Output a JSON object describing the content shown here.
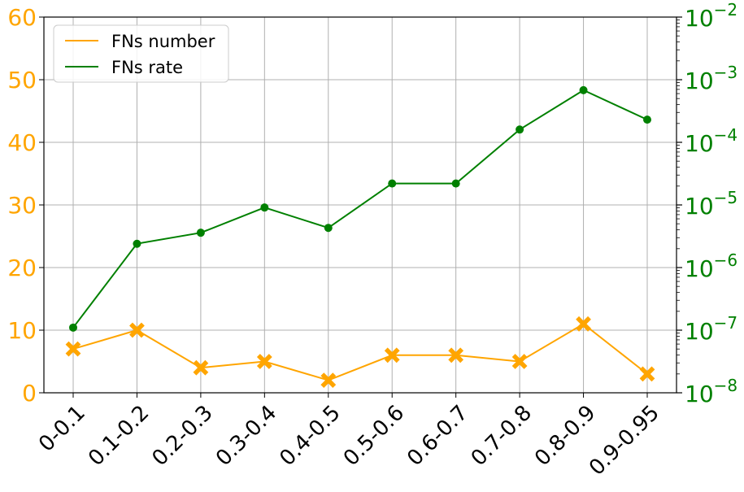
{
  "chart_data": {
    "type": "line",
    "categories": [
      "0-0.1",
      "0.1-0.2",
      "0.2-0.3",
      "0.3-0.4",
      "0.4-0.5",
      "0.5-0.6",
      "0.6-0.7",
      "0.7-0.8",
      "0.8-0.9",
      "0.9-0.95"
    ],
    "series": [
      {
        "name": "FNs number",
        "axis": "left",
        "color": "#ffa500",
        "marker": "X",
        "values": [
          7,
          10,
          4,
          5,
          2,
          6,
          6,
          5,
          11,
          3
        ]
      },
      {
        "name": "FNs rate",
        "axis": "right",
        "color": "#008000",
        "marker": "circle",
        "values": [
          1.1e-07,
          2.4e-06,
          3.6e-06,
          9.1e-06,
          4.3e-06,
          2.2e-05,
          2.2e-05,
          0.00016,
          0.00068,
          0.00023
        ]
      }
    ],
    "left_axis": {
      "ylim": [
        0,
        60
      ],
      "ticks": [
        0,
        10,
        20,
        30,
        40,
        50,
        60
      ],
      "tick_labels": [
        "0",
        "10",
        "20",
        "30",
        "40",
        "50",
        "60"
      ],
      "color": "#ffa500"
    },
    "right_axis": {
      "scale": "log",
      "ylim": [
        1e-08,
        0.01
      ],
      "ticks": [
        1e-08,
        1e-07,
        1e-06,
        1e-05,
        0.0001,
        0.001,
        0.01
      ],
      "tick_exponents": [
        "−8",
        "−7",
        "−6",
        "−5",
        "−4",
        "−3",
        "−2"
      ],
      "tick_base": "10",
      "color": "#008000"
    },
    "title": "",
    "xlabel": "",
    "ylabel": "",
    "grid": true,
    "legend": {
      "placement": "upper-left",
      "entries": [
        "FNs number",
        "FNs rate"
      ]
    }
  }
}
